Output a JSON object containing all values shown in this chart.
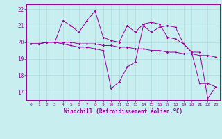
{
  "background_color": "#c8eef0",
  "grid_color": "#aadddd",
  "line_color": "#990099",
  "xlabel": "Windchill (Refroidissement éolien,°C)",
  "ylim": [
    16.5,
    22.3
  ],
  "xlim": [
    -0.5,
    23.5
  ],
  "yticks": [
    17,
    18,
    19,
    20,
    21,
    22
  ],
  "xticks": [
    0,
    1,
    2,
    3,
    4,
    5,
    6,
    7,
    8,
    9,
    10,
    11,
    12,
    13,
    14,
    15,
    16,
    17,
    18,
    19,
    20,
    21,
    22,
    23
  ],
  "series1": [
    19.9,
    19.9,
    20.0,
    20.0,
    21.3,
    21.0,
    20.6,
    21.3,
    21.9,
    20.3,
    20.1,
    20.0,
    21.0,
    20.6,
    21.1,
    21.2,
    21.1,
    20.3,
    20.2,
    19.9,
    19.4,
    17.5,
    17.5,
    17.3
  ],
  "series2": [
    19.9,
    19.9,
    20.0,
    20.0,
    20.0,
    20.0,
    19.9,
    19.9,
    19.9,
    19.8,
    19.8,
    19.7,
    19.7,
    19.6,
    19.6,
    19.5,
    19.5,
    19.4,
    19.4,
    19.3,
    19.3,
    19.2,
    19.2,
    19.1
  ],
  "series3": [
    19.9,
    19.9,
    20.0,
    20.0,
    19.9,
    19.8,
    19.7,
    19.7,
    19.6,
    19.5,
    17.2,
    17.6,
    18.5,
    18.8,
    21.0,
    20.6,
    20.9,
    21.0,
    20.9,
    19.9,
    19.4,
    19.4,
    16.6,
    17.3
  ],
  "figsize": [
    3.2,
    2.0
  ],
  "dpi": 100
}
